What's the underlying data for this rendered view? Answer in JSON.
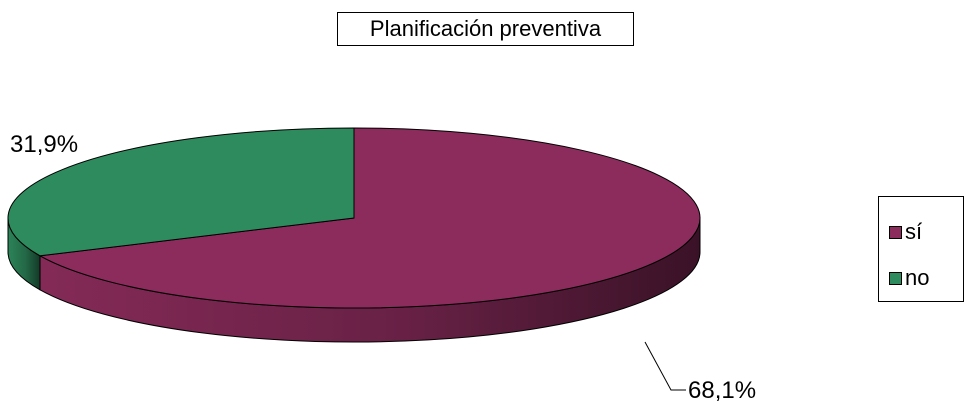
{
  "chart_data": {
    "type": "pie",
    "title": "Planificación preventiva",
    "categories": [
      "sí",
      "no"
    ],
    "values": [
      68.1,
      31.9
    ],
    "data_labels": [
      "68,1%",
      "31,9%"
    ],
    "colors": [
      "#8B2C5C",
      "#2E8B5E"
    ],
    "legend_position": "right",
    "style": "3d"
  }
}
